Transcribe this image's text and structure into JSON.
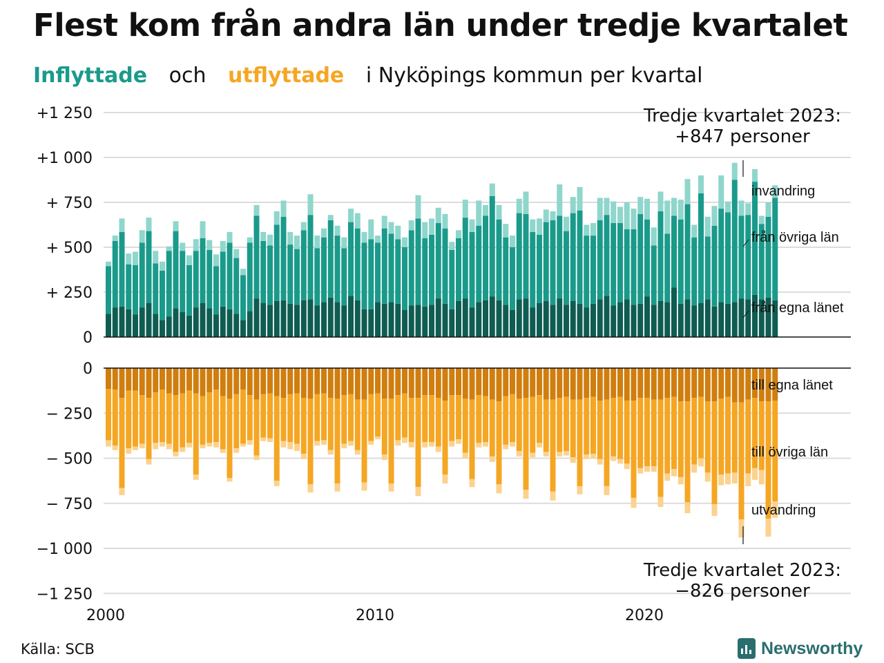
{
  "title": "Flest kom från andra län under tredje kvartalet",
  "subtitle": {
    "inflyttade": "Inflyttade",
    "och": "och",
    "utflyttade": "utflyttade",
    "rest": "i Nyköpings kommun per kvartal"
  },
  "source": "Källa: SCB",
  "logo": {
    "text": "Newsworthy",
    "icon": "newsworthy-bar-chart-icon"
  },
  "colors": {
    "in_egna": "#0f5c52",
    "in_ovriga": "#1a9a8a",
    "in_invandring": "#8fd6cc",
    "out_egna": "#d07e0e",
    "out_ovriga": "#f5a623",
    "out_utvandring": "#fbd28e",
    "title_in": "#1a9a8a",
    "title_out": "#f5a623"
  },
  "chart_data": {
    "type": "bar",
    "stacked": true,
    "x_start": "2000-Q1",
    "x_ticks": [
      "2000",
      "2010",
      "2020"
    ],
    "inflow_ticks": [
      "+1 250",
      "+1 000",
      "+  750",
      "+  500",
      "+  250",
      "0"
    ],
    "outflow_ticks": [
      "0",
      "−  250",
      "−  500",
      "−  750",
      "−1 000",
      "−1 250"
    ],
    "inflow_ylim": [
      0,
      1250
    ],
    "outflow_ylim": [
      -1250,
      0
    ],
    "inflow_series_labels": [
      "invandring",
      "från övriga län",
      "från egna länet"
    ],
    "outflow_series_labels": [
      "till egna länet",
      "till övriga län",
      "utvandring"
    ],
    "annotation_in": [
      "Tredje kvartalet 2023:",
      "+847 personer"
    ],
    "annotation_out": [
      "Tredje kvartalet 2023:",
      "−826 personer"
    ],
    "inflow_series": [
      {
        "name": "från egna länet",
        "values": [
          130,
          165,
          170,
          155,
          125,
          165,
          190,
          130,
          95,
          115,
          160,
          140,
          120,
          165,
          190,
          160,
          125,
          170,
          155,
          130,
          95,
          145,
          215,
          190,
          180,
          200,
          205,
          185,
          180,
          205,
          210,
          175,
          195,
          220,
          195,
          175,
          230,
          205,
          155,
          155,
          195,
          185,
          195,
          185,
          150,
          175,
          180,
          170,
          180,
          215,
          185,
          155,
          200,
          215,
          165,
          195,
          205,
          225,
          205,
          180,
          150,
          210,
          215,
          165,
          190,
          200,
          180,
          215,
          180,
          200,
          185,
          165,
          185,
          210,
          230,
          175,
          195,
          210,
          180,
          185,
          225,
          180,
          200,
          195,
          275,
          185,
          210,
          175,
          190,
          210,
          170,
          195,
          185,
          195,
          215,
          210,
          235,
          210,
          220,
          205
        ]
      },
      {
        "name": "från övriga län",
        "values": [
          265,
          370,
          415,
          250,
          275,
          360,
          400,
          280,
          275,
          365,
          430,
          340,
          280,
          315,
          360,
          325,
          270,
          305,
          370,
          310,
          250,
          380,
          460,
          345,
          330,
          425,
          465,
          330,
          310,
          390,
          470,
          320,
          360,
          430,
          370,
          320,
          410,
          400,
          370,
          390,
          330,
          420,
          380,
          360,
          350,
          420,
          480,
          380,
          390,
          420,
          420,
          330,
          350,
          450,
          420,
          425,
          470,
          560,
          450,
          375,
          350,
          480,
          470,
          420,
          380,
          440,
          470,
          460,
          410,
          490,
          520,
          400,
          380,
          440,
          450,
          460,
          440,
          390,
          420,
          500,
          430,
          330,
          500,
          380,
          400,
          470,
          530,
          380,
          610,
          350,
          450,
          520,
          510,
          680,
          460,
          470,
          630,
          420,
          450,
          570
        ]
      },
      {
        "name": "invandring",
        "values": [
          25,
          30,
          75,
          60,
          75,
          70,
          75,
          70,
          50,
          25,
          55,
          45,
          55,
          65,
          95,
          55,
          65,
          60,
          60,
          50,
          35,
          30,
          60,
          50,
          60,
          75,
          90,
          70,
          75,
          45,
          115,
          70,
          50,
          30,
          55,
          60,
          75,
          85,
          60,
          110,
          40,
          70,
          65,
          75,
          55,
          55,
          130,
          90,
          90,
          85,
          80,
          45,
          45,
          100,
          70,
          140,
          60,
          70,
          80,
          75,
          65,
          80,
          125,
          70,
          90,
          70,
          50,
          175,
          80,
          90,
          130,
          60,
          70,
          125,
          95,
          120,
          90,
          150,
          115,
          95,
          115,
          100,
          110,
          185,
          100,
          110,
          140,
          70,
          100,
          110,
          110,
          185,
          60,
          95,
          85,
          65,
          70,
          45,
          80,
          70
        ]
      }
    ],
    "outflow_series": [
      {
        "name": "till egna länet",
        "values": [
          -115,
          -120,
          -165,
          -125,
          -125,
          -150,
          -165,
          -135,
          -120,
          -140,
          -150,
          -140,
          -125,
          -140,
          -155,
          -135,
          -120,
          -155,
          -170,
          -145,
          -120,
          -150,
          -175,
          -145,
          -140,
          -155,
          -165,
          -145,
          -140,
          -165,
          -170,
          -145,
          -140,
          -165,
          -170,
          -150,
          -145,
          -175,
          -175,
          -145,
          -140,
          -170,
          -170,
          -150,
          -140,
          -165,
          -165,
          -150,
          -150,
          -165,
          -180,
          -150,
          -150,
          -170,
          -175,
          -150,
          -155,
          -175,
          -185,
          -155,
          -145,
          -170,
          -165,
          -160,
          -150,
          -175,
          -175,
          -165,
          -160,
          -175,
          -175,
          -165,
          -160,
          -180,
          -175,
          -165,
          -160,
          -180,
          -180,
          -165,
          -165,
          -175,
          -175,
          -165,
          -160,
          -185,
          -185,
          -165,
          -160,
          -185,
          -185,
          -170,
          -160,
          -190,
          -190,
          -175,
          -165,
          -185,
          -185,
          -180
        ]
      },
      {
        "name": "till övriga län",
        "values": [
          -285,
          -310,
          -500,
          -320,
          -310,
          -270,
          -340,
          -280,
          -290,
          -280,
          -315,
          -300,
          -290,
          -450,
          -270,
          -280,
          -290,
          -295,
          -440,
          -300,
          -300,
          -250,
          -310,
          -240,
          -250,
          -470,
          -240,
          -265,
          -280,
          -310,
          -475,
          -260,
          -260,
          -290,
          -470,
          -270,
          -260,
          -280,
          -460,
          -260,
          -240,
          -310,
          -470,
          -250,
          -245,
          -245,
          -495,
          -260,
          -260,
          -270,
          -410,
          -255,
          -245,
          -300,
          -440,
          -265,
          -255,
          -315,
          -460,
          -270,
          -265,
          -290,
          -510,
          -310,
          -265,
          -290,
          -510,
          -300,
          -300,
          -320,
          -480,
          -315,
          -315,
          -325,
          -480,
          -325,
          -345,
          -350,
          -540,
          -390,
          -380,
          -370,
          -540,
          -420,
          -400,
          -420,
          -560,
          -370,
          -340,
          -395,
          -570,
          -420,
          -425,
          -390,
          -650,
          -410,
          -390,
          -380,
          -650,
          -560
        ]
      },
      {
        "name": "utvandring",
        "values": [
          -35,
          -25,
          -40,
          -30,
          -20,
          -25,
          -30,
          -35,
          -25,
          -30,
          -25,
          -25,
          -25,
          -30,
          -20,
          -20,
          -30,
          -20,
          -20,
          -25,
          -15,
          -25,
          -25,
          -20,
          -20,
          -30,
          -35,
          -40,
          -40,
          -30,
          -45,
          -25,
          -25,
          -25,
          -45,
          -25,
          -25,
          -25,
          -45,
          -20,
          -15,
          -30,
          -45,
          -30,
          -30,
          -30,
          -50,
          -30,
          -25,
          -30,
          -50,
          -30,
          -25,
          -30,
          -45,
          -25,
          -25,
          -30,
          -50,
          -25,
          -25,
          -30,
          -50,
          -25,
          -25,
          -25,
          -50,
          -25,
          -25,
          -30,
          -45,
          -25,
          -25,
          -30,
          -50,
          -25,
          -25,
          -30,
          -55,
          -30,
          -30,
          -30,
          -55,
          -40,
          -40,
          -40,
          -60,
          -45,
          -45,
          -50,
          -65,
          -60,
          -60,
          -60,
          -100,
          -70,
          -65,
          -80,
          -100,
          -90
        ]
      }
    ]
  }
}
